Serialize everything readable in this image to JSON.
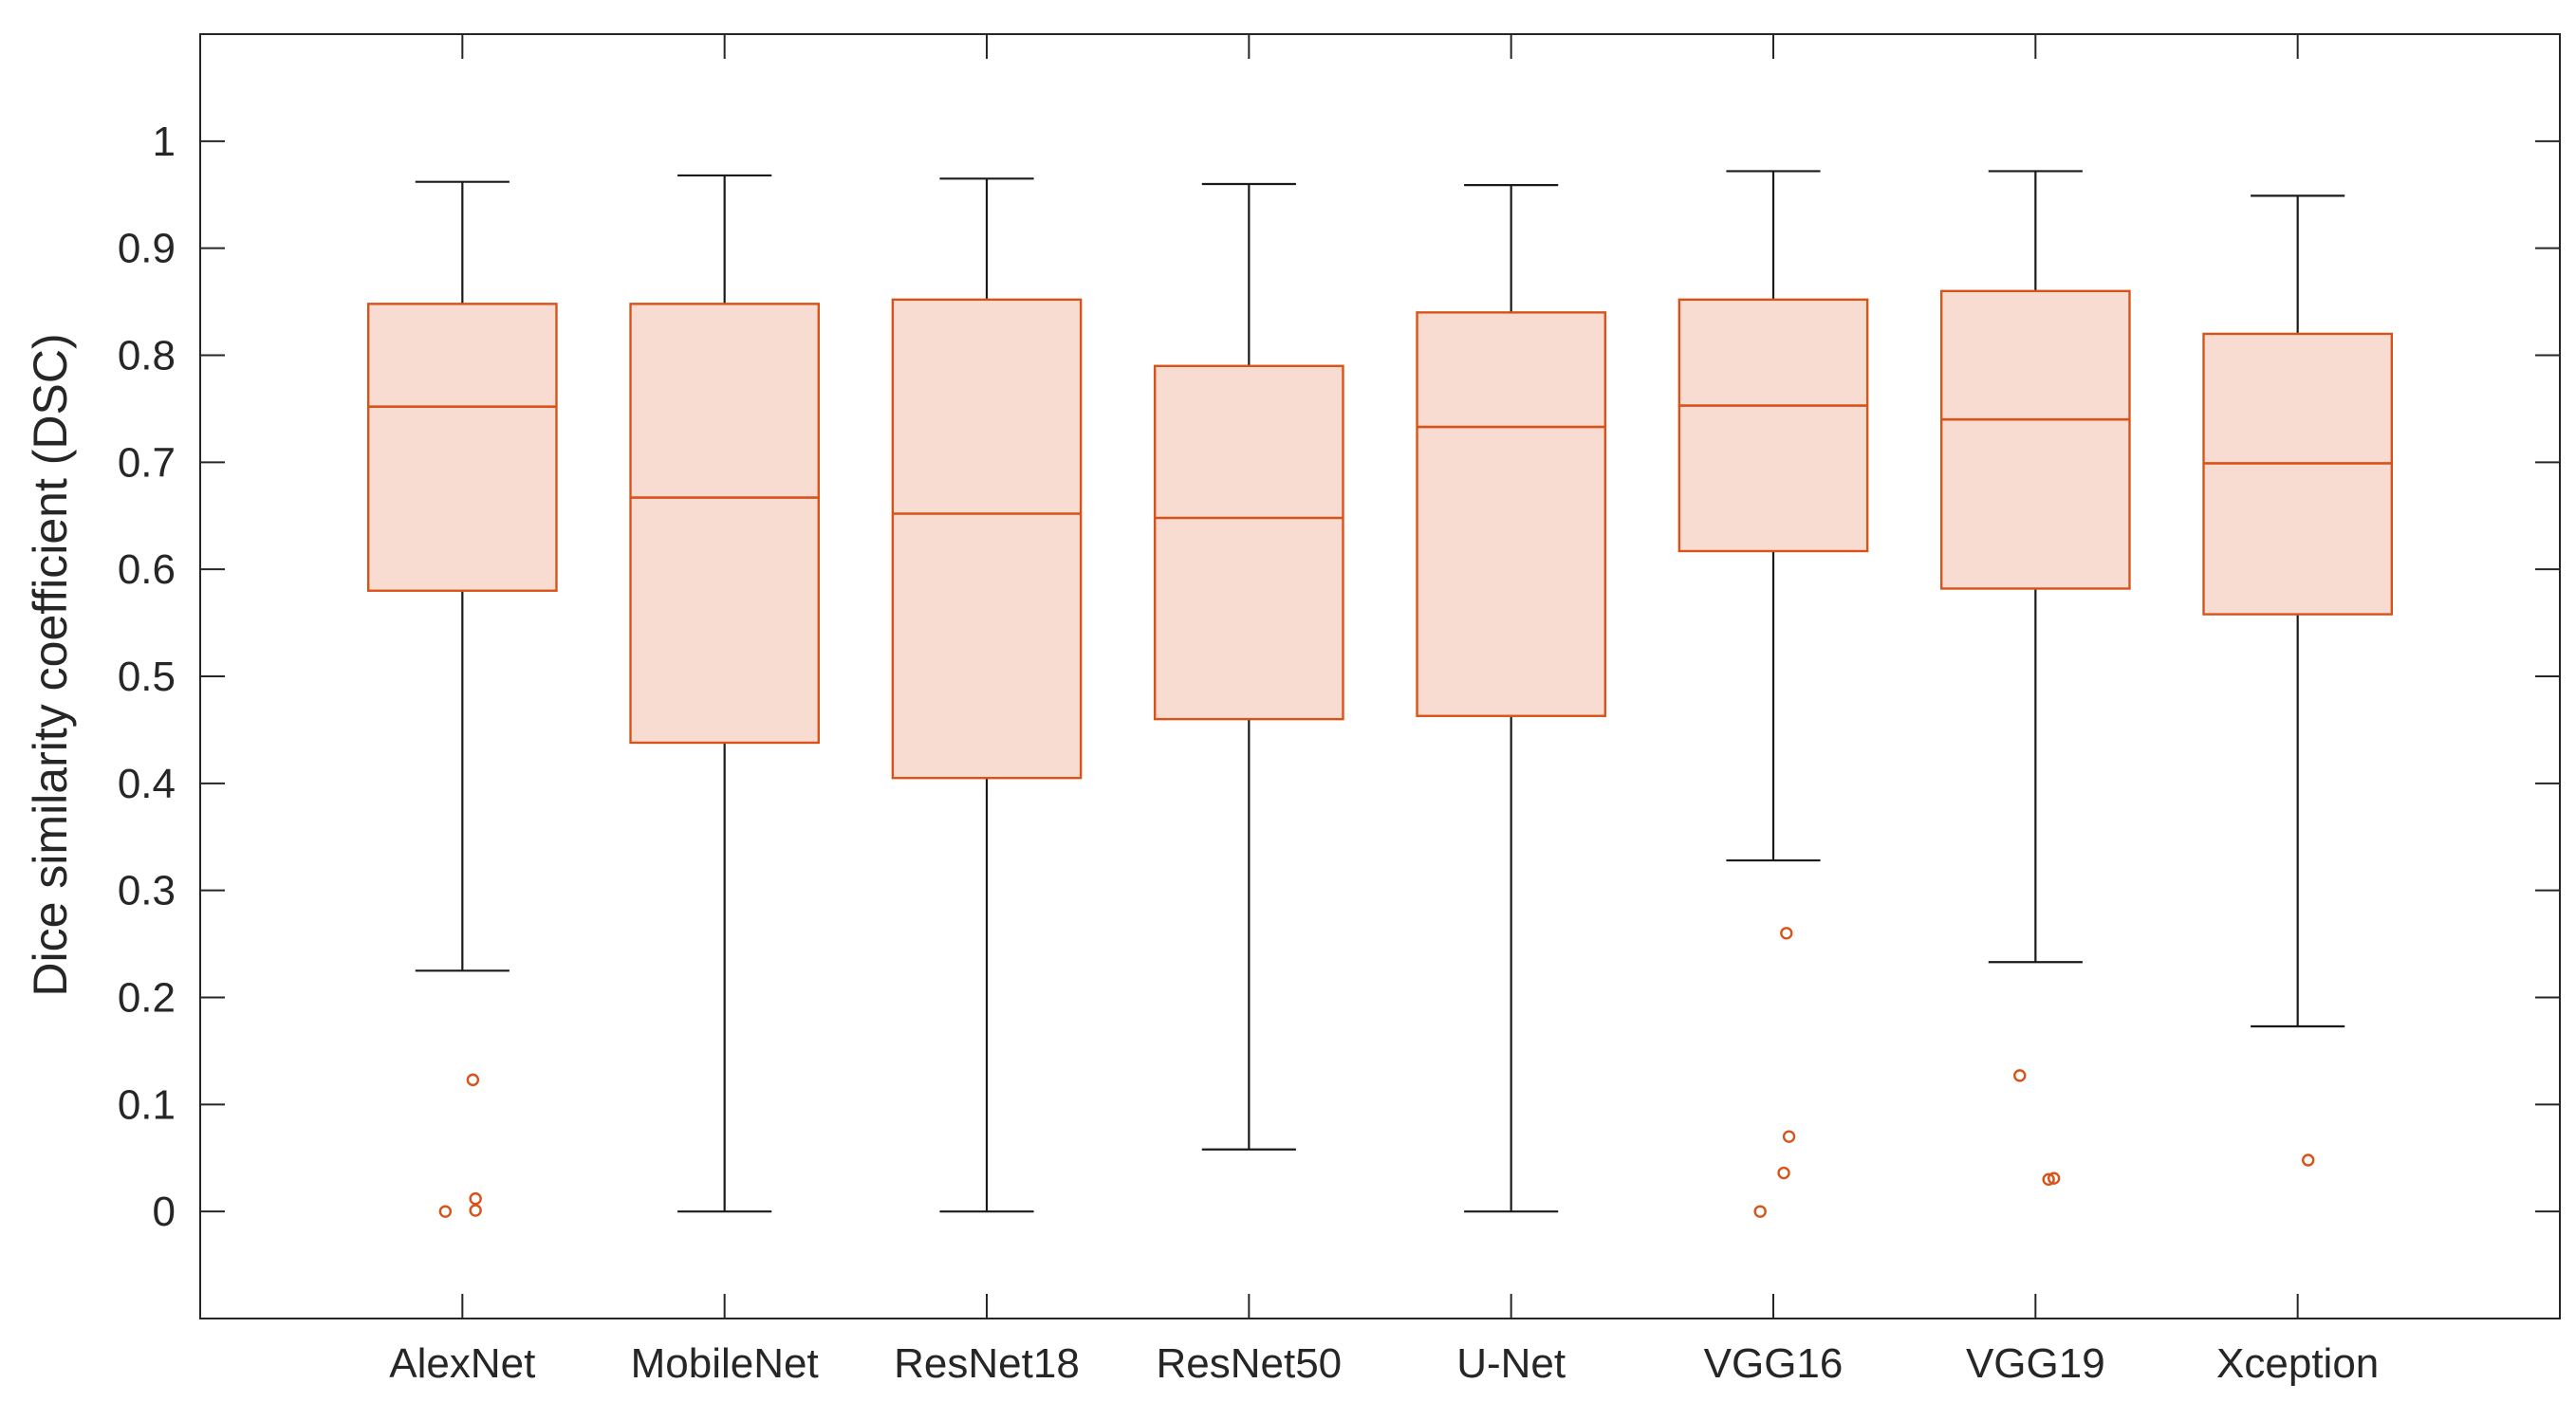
{
  "chart_data": {
    "type": "box",
    "title": "",
    "xlabel": "",
    "ylabel": "Dice similarity coefficient (DSC)",
    "ylim": [
      -0.1,
      1.1
    ],
    "yticks": [
      0,
      0.1,
      0.2,
      0.3,
      0.4,
      0.5,
      0.6,
      0.7,
      0.8,
      0.9,
      1
    ],
    "ytick_labels": [
      "0",
      "0.1",
      "0.2",
      "0.3",
      "0.4",
      "0.5",
      "0.6",
      "0.7",
      "0.8",
      "0.9",
      "1"
    ],
    "grid": false,
    "legend": "none",
    "colors": {
      "box_edge": "#d95319",
      "box_fill": "#f8dcd1",
      "whisker": "#1a1a1a",
      "axis": "#262626"
    },
    "categories": [
      "AlexNet",
      "MobileNet",
      "ResNet18",
      "ResNet50",
      "U-Net",
      "VGG16",
      "VGG19",
      "Xception"
    ],
    "boxes": [
      {
        "category": "AlexNet",
        "min": 0.225,
        "q1": 0.58,
        "median": 0.752,
        "q3": 0.848,
        "max": 0.962,
        "outliers": [
          {
            "x": 0.935,
            "y": 0.0
          },
          {
            "x": 1.04,
            "y": 0.123
          },
          {
            "x": 1.05,
            "y": 0.012
          },
          {
            "x": 1.05,
            "y": 0.001
          }
        ]
      },
      {
        "category": "MobileNet",
        "min": 0.0,
        "q1": 0.438,
        "median": 0.667,
        "q3": 0.848,
        "max": 0.968,
        "outliers": []
      },
      {
        "category": "ResNet18",
        "min": 0.0,
        "q1": 0.405,
        "median": 0.652,
        "q3": 0.852,
        "max": 0.965,
        "outliers": []
      },
      {
        "category": "ResNet50",
        "min": 0.058,
        "q1": 0.46,
        "median": 0.648,
        "q3": 0.79,
        "max": 0.96,
        "outliers": []
      },
      {
        "category": "U-Net",
        "min": 0.0,
        "q1": 0.463,
        "median": 0.733,
        "q3": 0.84,
        "max": 0.959,
        "outliers": []
      },
      {
        "category": "VGG16",
        "min": 0.328,
        "q1": 0.617,
        "median": 0.753,
        "q3": 0.852,
        "max": 0.972,
        "outliers": [
          {
            "x": 5.95,
            "y": 0.0
          },
          {
            "x": 6.05,
            "y": 0.26
          },
          {
            "x": 6.06,
            "y": 0.07
          },
          {
            "x": 6.04,
            "y": 0.036
          }
        ]
      },
      {
        "category": "VGG19",
        "min": 0.233,
        "q1": 0.582,
        "median": 0.74,
        "q3": 0.86,
        "max": 0.972,
        "outliers": [
          {
            "x": 6.94,
            "y": 0.127
          },
          {
            "x": 7.05,
            "y": 0.03
          },
          {
            "x": 7.07,
            "y": 0.031
          }
        ]
      },
      {
        "category": "Xception",
        "min": 0.173,
        "q1": 0.558,
        "median": 0.699,
        "q3": 0.82,
        "max": 0.949,
        "outliers": [
          {
            "x": 8.04,
            "y": 0.048
          }
        ]
      }
    ]
  }
}
